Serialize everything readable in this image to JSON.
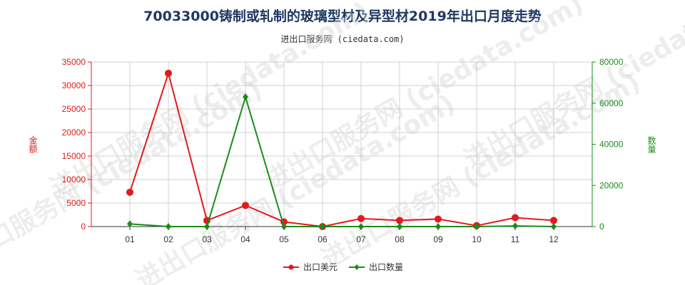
{
  "chart_data": {
    "type": "line",
    "title": "70033000铸制或轧制的玻璃型材及异型材2019年出口月度走势",
    "subtitle": "进出口服务网 (ciedata.com)",
    "categories": [
      "01",
      "02",
      "03",
      "04",
      "05",
      "06",
      "07",
      "08",
      "09",
      "10",
      "11",
      "12"
    ],
    "y_left": {
      "label": "金额",
      "min": 0,
      "max": 35000,
      "ticks": [
        0,
        5000,
        10000,
        15000,
        20000,
        25000,
        30000,
        35000
      ],
      "color": "#e31a1c"
    },
    "y_right": {
      "label": "数量",
      "min": 0,
      "max": 80000,
      "ticks": [
        0,
        20000,
        40000,
        60000,
        80000
      ],
      "color": "#1a8c1a"
    },
    "grid": true,
    "legend_position": "bottom-center",
    "series": [
      {
        "name": "出口美元",
        "axis": "left",
        "color": "#e31a1c",
        "marker": "circle",
        "values": [
          7300,
          32600,
          1300,
          4500,
          1000,
          0,
          1700,
          1300,
          1600,
          200,
          1900,
          1300
        ]
      },
      {
        "name": "出口数量",
        "axis": "right",
        "color": "#1a8c1a",
        "marker": "diamond",
        "values": [
          1300,
          0,
          0,
          63000,
          0,
          0,
          0,
          0,
          0,
          0,
          300,
          0
        ]
      }
    ],
    "watermark": "进出口服务网 (ciedata.com)"
  }
}
